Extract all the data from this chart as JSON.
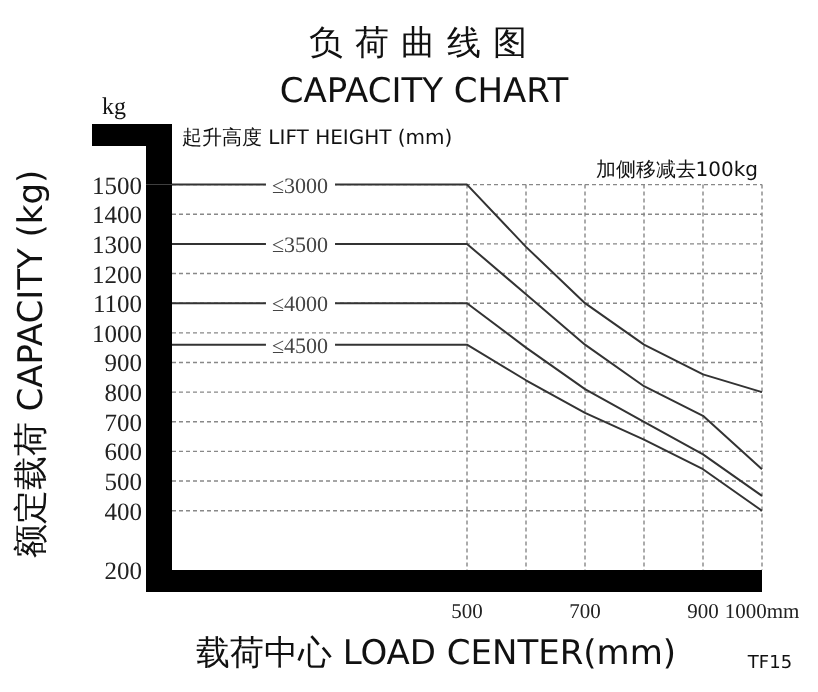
{
  "chart_data": {
    "type": "line",
    "title": "负荷曲线图",
    "subtitle": "CAPACITY CHART",
    "xlabel": "载荷中心  LOAD CENTER(mm)",
    "ylabel": "额定载荷 CAPACITY (kg)",
    "legend_title": "起升高度 LIFT HEIGHT (mm)",
    "annotations": [
      "kg",
      "加侧移减去100kg",
      "TF15"
    ],
    "x": [
      0,
      500,
      600,
      700,
      800,
      900,
      1000
    ],
    "series": [
      {
        "name": "≤3000",
        "color": "#333333",
        "values": [
          1500,
          1500,
          1290,
          1100,
          960,
          860,
          800
        ]
      },
      {
        "name": "≤3500",
        "color": "#333333",
        "values": [
          1300,
          1300,
          1130,
          960,
          820,
          720,
          540
        ]
      },
      {
        "name": "≤4000",
        "color": "#333333",
        "values": [
          1100,
          1100,
          950,
          810,
          700,
          590,
          450
        ]
      },
      {
        "name": "≤4500",
        "color": "#333333",
        "values": [
          960,
          960,
          840,
          730,
          640,
          540,
          400
        ]
      }
    ],
    "xlim": [
      0,
      1000
    ],
    "xticks": [
      500,
      {
        "value": 600,
        "label": null
      },
      700,
      {
        "value": 800,
        "label": null
      },
      900,
      {
        "value": 1000,
        "label": "1000mm"
      }
    ],
    "ylim": [
      200,
      1500
    ],
    "yticks": [
      1500,
      1400,
      1300,
      1200,
      1100,
      1000,
      900,
      800,
      700,
      600,
      500,
      400,
      200
    ],
    "grid": true,
    "marker": "none",
    "line_style": "solid"
  }
}
